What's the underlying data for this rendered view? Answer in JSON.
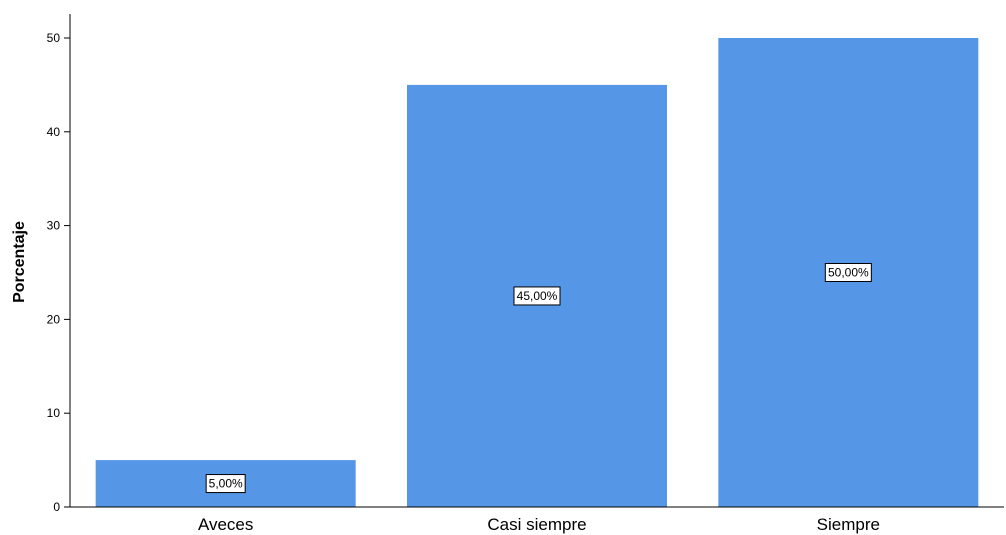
{
  "chart_data": {
    "type": "bar",
    "categories": [
      "Aveces",
      "Casi siempre",
      "Siempre"
    ],
    "values": [
      5,
      45,
      50
    ],
    "data_labels": [
      "5,00%",
      "45,00%",
      "50,00%"
    ],
    "ylabel": "Porcentaje",
    "xlabel": "",
    "ylim": [
      0,
      52
    ],
    "yticks": [
      0,
      10,
      20,
      30,
      40,
      50
    ],
    "grid": false,
    "bar_color": "#5596e6"
  }
}
